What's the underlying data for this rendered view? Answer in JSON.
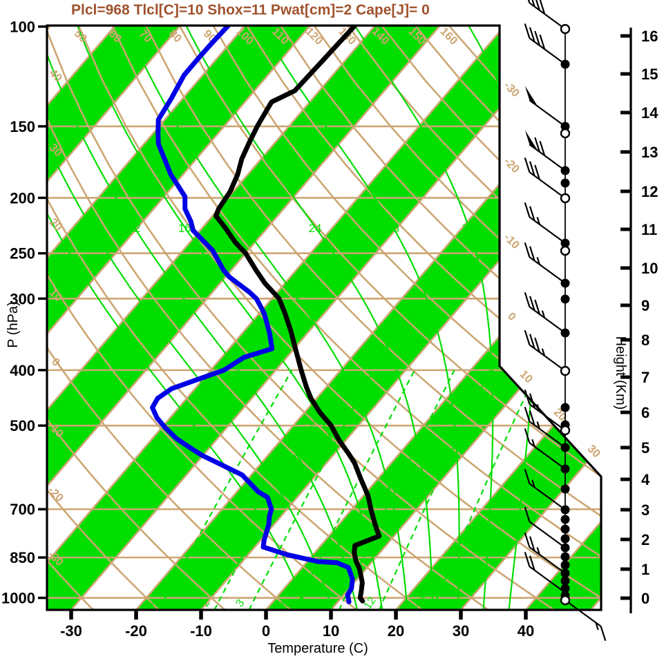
{
  "title": {
    "text": "Plcl=968 Tlcl[C]=10 Shox=11 Pwat[cm]=2 Cape[J]= 0"
  },
  "axes": {
    "pressure": {
      "label": "P (hPa)",
      "ticks": [
        100,
        150,
        200,
        250,
        300,
        400,
        500,
        700,
        850,
        1000
      ]
    },
    "temperature": {
      "label": "Temperature (C)",
      "ticks": [
        -30,
        -20,
        -10,
        0,
        10,
        20,
        30,
        40
      ]
    },
    "height": {
      "label": "Height (Km)",
      "ticks": [
        {
          "km": 0,
          "y": 866
        },
        {
          "km": 1,
          "y": 824
        },
        {
          "km": 2,
          "y": 781
        },
        {
          "km": 3,
          "y": 738
        },
        {
          "km": 4,
          "y": 694
        },
        {
          "km": 5,
          "y": 648
        },
        {
          "km": 6,
          "y": 597
        },
        {
          "km": 7,
          "y": 546
        },
        {
          "km": 8,
          "y": 492
        },
        {
          "km": 9,
          "y": 442
        },
        {
          "km": 10,
          "y": 388
        },
        {
          "km": 11,
          "y": 332
        },
        {
          "km": 12,
          "y": 277
        },
        {
          "km": 13,
          "y": 220
        },
        {
          "km": 14,
          "y": 163
        },
        {
          "km": 15,
          "y": 107
        },
        {
          "km": 16,
          "y": 52
        }
      ]
    }
  },
  "chart_data": {
    "type": "line",
    "subtype": "skewt-logp",
    "pressure_range_hpa": [
      100,
      1050
    ],
    "temp_axis_range_c": [
      -33,
      51
    ],
    "isotherm_step_c": 10,
    "dry_adiabats_c": [
      -30,
      -20,
      -10,
      0,
      10,
      20,
      30,
      40,
      50,
      60,
      70,
      80,
      90,
      100,
      110,
      120,
      130,
      140,
      150,
      160
    ],
    "moist_adiabats_c": [
      4,
      8,
      12,
      16,
      20,
      24,
      28,
      32,
      36
    ],
    "moist_adiabat_labels": [
      12,
      16,
      20,
      24,
      28,
      32
    ],
    "mixing_ratio_gkg": [
      1,
      2,
      3,
      5,
      8,
      12,
      20
    ],
    "adiabat_labels_top": [
      {
        "v": 50,
        "x": 113
      },
      {
        "v": 60,
        "x": 163
      },
      {
        "v": 70,
        "x": 207
      },
      {
        "v": 80,
        "x": 250
      },
      {
        "v": 90,
        "x": 300
      },
      {
        "v": 100,
        "x": 351
      },
      {
        "v": 110,
        "x": 402
      },
      {
        "v": 120,
        "x": 451
      },
      {
        "v": 130,
        "x": 499
      },
      {
        "v": 140,
        "x": 547
      },
      {
        "v": 150,
        "x": 600
      },
      {
        "v": 160,
        "x": 646
      }
    ],
    "adiabat_labels_left": [
      {
        "v": 40,
        "y": 113
      },
      {
        "v": 30,
        "y": 221
      },
      {
        "v": 20,
        "y": 329
      },
      {
        "v": 10,
        "y": 431
      },
      {
        "v": 0,
        "y": 528
      },
      {
        "v": -10,
        "y": 626
      },
      {
        "v": -20,
        "y": 719
      },
      {
        "v": -30,
        "y": 812
      }
    ],
    "isotherm_labels_right": [
      {
        "v": -30,
        "x": 737,
        "y": 133
      },
      {
        "v": -20,
        "x": 737,
        "y": 243
      },
      {
        "v": -10,
        "x": 737,
        "y": 353
      },
      {
        "v": 0,
        "x": 737,
        "y": 462
      },
      {
        "v": 10,
        "x": 758,
        "y": 549
      },
      {
        "v": 20,
        "x": 807,
        "y": 604
      },
      {
        "v": 30,
        "x": 856,
        "y": 657
      }
    ],
    "series": [
      {
        "name": "temperature",
        "points": [
          [
            100,
            -63.1
          ],
          [
            117,
            -63.5
          ],
          [
            130,
            -63.8
          ],
          [
            136,
            -65.9
          ],
          [
            150,
            -64.9
          ],
          [
            160,
            -64.0
          ],
          [
            171,
            -63.0
          ],
          [
            182,
            -61.6
          ],
          [
            195,
            -60.5
          ],
          [
            209,
            -60.0
          ],
          [
            215,
            -59.5
          ],
          [
            226,
            -56.4
          ],
          [
            239,
            -53.1
          ],
          [
            250,
            -50.0
          ],
          [
            267,
            -46.3
          ],
          [
            282,
            -43.1
          ],
          [
            300,
            -38.9
          ],
          [
            318,
            -36.1
          ],
          [
            342,
            -32.8
          ],
          [
            367,
            -29.8
          ],
          [
            400,
            -26.1
          ],
          [
            428,
            -23.1
          ],
          [
            448,
            -20.9
          ],
          [
            474,
            -17.7
          ],
          [
            500,
            -14.2
          ],
          [
            530,
            -11.1
          ],
          [
            561,
            -7.7
          ],
          [
            581,
            -5.7
          ],
          [
            620,
            -2.6
          ],
          [
            663,
            0.7
          ],
          [
            700,
            2.9
          ],
          [
            745,
            5.6
          ],
          [
            780,
            7.7
          ],
          [
            810,
            5.2
          ],
          [
            835,
            6.1
          ],
          [
            862,
            7.4
          ],
          [
            890,
            9.0
          ],
          [
            940,
            11.2
          ],
          [
            970,
            12.1
          ],
          [
            1000,
            12.9
          ],
          [
            1013,
            13.7
          ]
        ]
      },
      {
        "name": "dewpoint",
        "points": [
          [
            100,
            -82.6
          ],
          [
            107,
            -82.8
          ],
          [
            113,
            -82.9
          ],
          [
            122,
            -82.9
          ],
          [
            134,
            -81.8
          ],
          [
            146,
            -81.0
          ],
          [
            155,
            -79.1
          ],
          [
            161,
            -77.8
          ],
          [
            182,
            -71.9
          ],
          [
            199,
            -66.8
          ],
          [
            209,
            -65.2
          ],
          [
            220,
            -62.6
          ],
          [
            228,
            -61.1
          ],
          [
            247,
            -55.5
          ],
          [
            267,
            -51.3
          ],
          [
            275,
            -49.4
          ],
          [
            292,
            -44.4
          ],
          [
            300,
            -42.4
          ],
          [
            318,
            -39.3
          ],
          [
            345,
            -35.8
          ],
          [
            367,
            -33.4
          ],
          [
            380,
            -36.6
          ],
          [
            400,
            -38.0
          ],
          [
            419,
            -41.5
          ],
          [
            431,
            -43.6
          ],
          [
            448,
            -44.5
          ],
          [
            465,
            -44.1
          ],
          [
            485,
            -42.0
          ],
          [
            504,
            -39.5
          ],
          [
            527,
            -36.3
          ],
          [
            549,
            -32.6
          ],
          [
            564,
            -30.1
          ],
          [
            583,
            -26.4
          ],
          [
            610,
            -21.4
          ],
          [
            652,
            -16.8
          ],
          [
            667,
            -14.6
          ],
          [
            700,
            -12.4
          ],
          [
            720,
            -11.8
          ],
          [
            745,
            -10.8
          ],
          [
            792,
            -9.5
          ],
          [
            815,
            -8.7
          ],
          [
            840,
            -4.1
          ],
          [
            864,
            1.6
          ],
          [
            868,
            4.7
          ],
          [
            885,
            7.1
          ],
          [
            926,
            9.2
          ],
          [
            962,
            10.3
          ],
          [
            989,
            10.6
          ],
          [
            1016,
            11.7
          ]
        ]
      }
    ],
    "wind_column": {
      "circles": [
        {
          "y": 42,
          "t": "o"
        },
        {
          "y": 93,
          "t": "f"
        },
        {
          "y": 183,
          "t": "f"
        },
        {
          "y": 193,
          "t": "o"
        },
        {
          "y": 247,
          "t": "f"
        },
        {
          "y": 265,
          "t": "f"
        },
        {
          "y": 287,
          "t": "o"
        },
        {
          "y": 352,
          "t": "f"
        },
        {
          "y": 363,
          "t": "o"
        },
        {
          "y": 410,
          "t": "f"
        },
        {
          "y": 433,
          "t": "f"
        },
        {
          "y": 482,
          "t": "f"
        },
        {
          "y": 537,
          "t": "o"
        },
        {
          "y": 590,
          "t": "f"
        },
        {
          "y": 615,
          "t": "f"
        },
        {
          "y": 623,
          "t": "o"
        },
        {
          "y": 648,
          "t": "f"
        },
        {
          "y": 679,
          "t": "f"
        },
        {
          "y": 708,
          "t": "f"
        },
        {
          "y": 738,
          "t": "f"
        },
        {
          "y": 752,
          "t": "f"
        },
        {
          "y": 766,
          "t": "f"
        },
        {
          "y": 780,
          "t": "f"
        },
        {
          "y": 793,
          "t": "f"
        },
        {
          "y": 806,
          "t": "f"
        },
        {
          "y": 818,
          "t": "f"
        },
        {
          "y": 830,
          "t": "f"
        },
        {
          "y": 841,
          "t": "f"
        },
        {
          "y": 852,
          "t": "f"
        },
        {
          "y": 862,
          "t": "f"
        },
        {
          "y": 869,
          "t": "o"
        }
      ],
      "barbs": [
        {
          "y": 42,
          "fl": 0,
          "fu": 4,
          "ha": 0
        },
        {
          "y": 93,
          "fl": 0,
          "fu": 4,
          "ha": 0
        },
        {
          "y": 183,
          "fl": 1,
          "fu": 0,
          "ha": 0
        },
        {
          "y": 247,
          "fl": 1,
          "fu": 2,
          "ha": 0
        },
        {
          "y": 287,
          "fl": 0,
          "fu": 3,
          "ha": 0
        },
        {
          "y": 352,
          "fl": 0,
          "fu": 2,
          "ha": 1
        },
        {
          "y": 410,
          "fl": 0,
          "fu": 2,
          "ha": 1
        },
        {
          "y": 482,
          "fl": 0,
          "fu": 3,
          "ha": 1
        },
        {
          "y": 537,
          "fl": 0,
          "fu": 3,
          "ha": 1
        },
        {
          "y": 623,
          "fl": 0,
          "fu": 2,
          "ha": 1
        },
        {
          "y": 648,
          "fl": 0,
          "fu": 2,
          "ha": 1
        },
        {
          "y": 679,
          "fl": 0,
          "fu": 1,
          "ha": 1
        },
        {
          "y": 738,
          "fl": 0,
          "fu": 1,
          "ha": 1
        },
        {
          "y": 793,
          "fl": 0,
          "fu": 1,
          "ha": 0
        },
        {
          "y": 830,
          "fl": 0,
          "fu": 2,
          "ha": 1
        },
        {
          "y": 858,
          "fl": 0,
          "fu": 2,
          "ha": 0
        },
        {
          "y": 869,
          "fl": 0,
          "fu": 1,
          "ha": 1,
          "dir": "down"
        }
      ]
    },
    "colors": {
      "band_green": "#00de00",
      "line_green": "#00de00",
      "tan": "#cda672",
      "temperature_curve": "#000000",
      "dewpoint_curve": "#0000e6",
      "title": "#a0522d"
    },
    "grid_on": true,
    "legend": "none"
  }
}
